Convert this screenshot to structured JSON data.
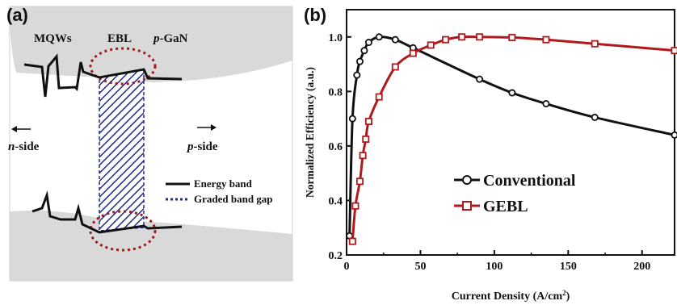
{
  "panel_a": {
    "label": "(a)",
    "regions": {
      "mqws": "MQWs",
      "ebl": "EBL",
      "pgan_prefix": "p",
      "pgan_suffix": "-GaN"
    },
    "sides": {
      "n_prefix": "n",
      "n_suffix": "-side",
      "p_prefix": "p",
      "p_suffix": "-side"
    },
    "legend": {
      "energy_band": "Energy band",
      "graded_gap": "Graded band gap"
    },
    "colors": {
      "hatch": "#1f2a8c",
      "circle": "#9c1c1c",
      "band": "#111111",
      "background": "#d9d9d9"
    }
  },
  "panel_b": {
    "label": "(b)"
  },
  "chart_data": {
    "type": "line",
    "xlabel": "Current Density (A/cm",
    "xlabel_sup": "2",
    "xlabel_close": ")",
    "ylabel": "Normalized Efficiency (a.u.)",
    "xlim": [
      0,
      222
    ],
    "ylim": [
      0.2,
      1.1
    ],
    "xticks": [
      0,
      50,
      100,
      150,
      200
    ],
    "yticks": [
      0.2,
      0.4,
      0.6,
      0.8,
      1.0
    ],
    "ytick_labels": [
      "0.2",
      "0.4",
      "0.6",
      "0.8",
      "1.0"
    ],
    "xtick_labels": [
      "0",
      "50",
      "100",
      "150",
      "200"
    ],
    "legend_position": "center",
    "series": [
      {
        "name": "Conventional",
        "color": "#111111",
        "marker": "circle",
        "points": [
          [
            2,
            0.27
          ],
          [
            4,
            0.7
          ],
          [
            7,
            0.86
          ],
          [
            9,
            0.91
          ],
          [
            12,
            0.95
          ],
          [
            15,
            0.98
          ],
          [
            22,
            1.0
          ],
          [
            33,
            0.99
          ],
          [
            45,
            0.96
          ],
          [
            90,
            0.845
          ],
          [
            112,
            0.795
          ],
          [
            135,
            0.755
          ],
          [
            168,
            0.705
          ],
          [
            222,
            0.64
          ]
        ]
      },
      {
        "name": "GEBL",
        "color": "#b0191e",
        "marker": "square",
        "points": [
          [
            4,
            0.25
          ],
          [
            6,
            0.38
          ],
          [
            9,
            0.47
          ],
          [
            11,
            0.565
          ],
          [
            13,
            0.625
          ],
          [
            15,
            0.69
          ],
          [
            22,
            0.78
          ],
          [
            33,
            0.89
          ],
          [
            45,
            0.94
          ],
          [
            57,
            0.97
          ],
          [
            67,
            0.99
          ],
          [
            78,
            1.0
          ],
          [
            90,
            1.0
          ],
          [
            112,
            0.998
          ],
          [
            135,
            0.99
          ],
          [
            168,
            0.975
          ],
          [
            222,
            0.95
          ]
        ]
      }
    ]
  }
}
